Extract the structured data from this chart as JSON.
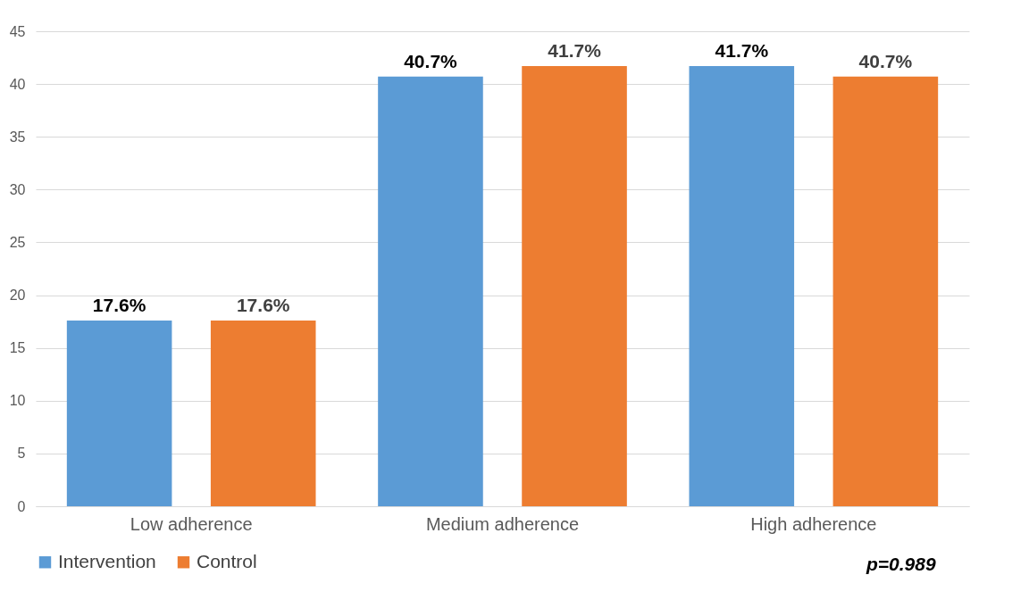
{
  "chart_data": {
    "type": "bar",
    "categories": [
      "Low adherence",
      "Medium adherence",
      "High adherence"
    ],
    "series": [
      {
        "name": "Intervention",
        "color": "#5b9bd5",
        "values": [
          17.6,
          40.7,
          41.7
        ],
        "value_labels": [
          "17.6%",
          "40.7%",
          "41.7%"
        ]
      },
      {
        "name": "Control",
        "color": "#ed7d31",
        "values": [
          17.6,
          41.7,
          40.7
        ],
        "value_labels": [
          "17.6%",
          "41.7%",
          "40.7%"
        ]
      }
    ],
    "ylim": [
      0,
      45
    ],
    "yticks": [
      0,
      5,
      10,
      15,
      20,
      25,
      30,
      35,
      40,
      45
    ],
    "grid": "y",
    "legend": "bottom",
    "annotations": [
      "p=0.989"
    ]
  }
}
